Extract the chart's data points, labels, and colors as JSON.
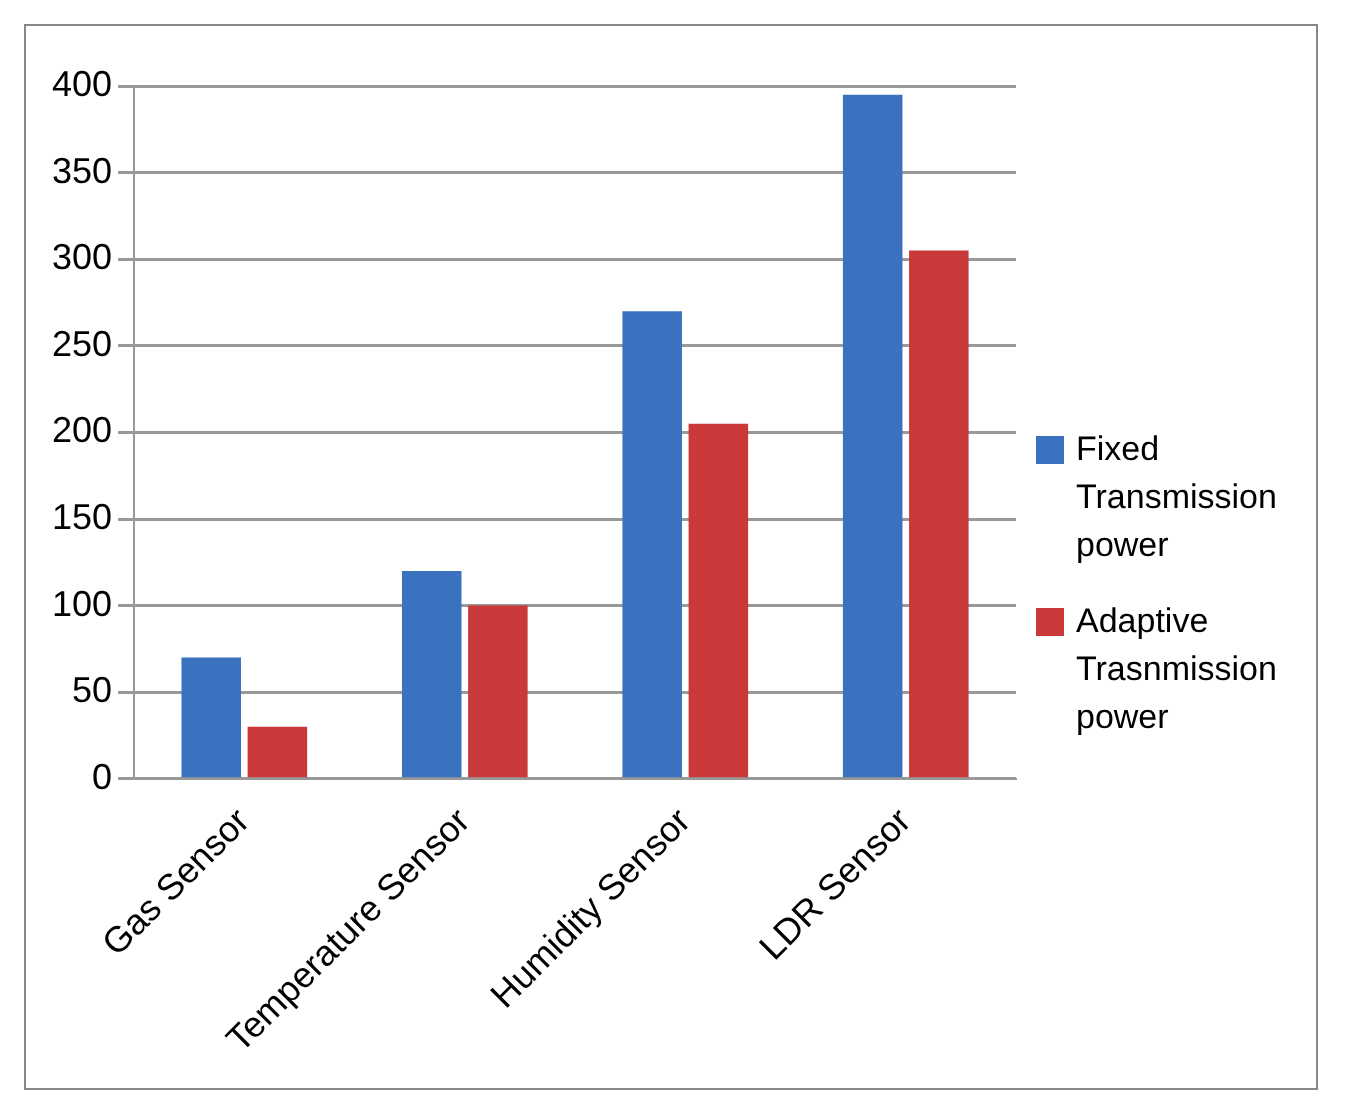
{
  "chart_data": {
    "type": "bar",
    "categories": [
      "Gas Sensor",
      "Temperature Sensor",
      "Humidity Sensor",
      "LDR Sensor"
    ],
    "series": [
      {
        "name": "Fixed Transmission power",
        "color": "#3a72c0",
        "values": [
          70,
          120,
          270,
          395
        ]
      },
      {
        "name": "Adaptive Trasnmission power",
        "color": "#c9393a",
        "values": [
          30,
          100,
          205,
          305
        ]
      }
    ],
    "ylim": [
      0,
      400
    ],
    "yticks": [
      0,
      50,
      100,
      150,
      200,
      250,
      300,
      350,
      400
    ],
    "grid": "y",
    "legend": "right"
  }
}
